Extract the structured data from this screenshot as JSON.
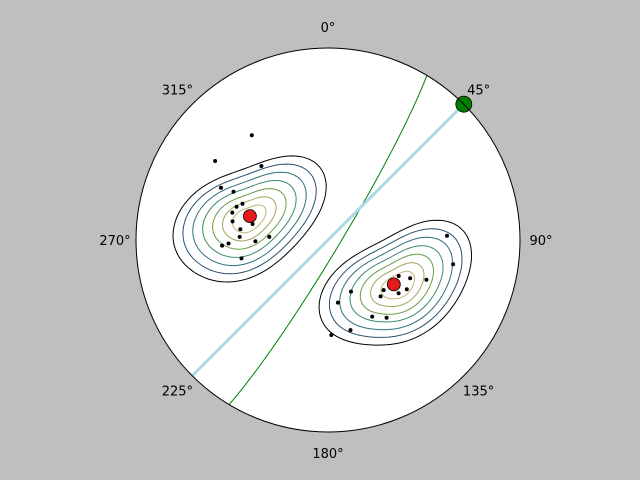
{
  "chart_data": {
    "type": "scatter",
    "projection": "equal-area stereonet",
    "background_color": "#bfbfbf",
    "azimuth_labels": [
      {
        "deg": 0,
        "text": "0°"
      },
      {
        "deg": 45,
        "text": "45°"
      },
      {
        "deg": 90,
        "text": "90°"
      },
      {
        "deg": 135,
        "text": "135°"
      },
      {
        "deg": 180,
        "text": "180°"
      },
      {
        "deg": 225,
        "text": "225°"
      },
      {
        "deg": 270,
        "text": "270°"
      },
      {
        "deg": 315,
        "text": "315°"
      }
    ],
    "grid": false,
    "legend": "none",
    "contour_colors": [
      "#000000",
      "#2b4f6e",
      "#2e6f7a",
      "#3c8a6a",
      "#6a9a4a",
      "#9da55a",
      "#c8b27a"
    ],
    "clusters": [
      {
        "name": "",
        "center_azimuth_deg": 285,
        "center_plunge_deg": 55,
        "mean_pole": {
          "azimuth_deg": 287,
          "plunge_deg": 55
        },
        "color": "#e41a1c",
        "poles": [
          [
            318,
            47
          ],
          [
            324,
            33
          ],
          [
            297,
            44
          ],
          [
            290,
            48
          ],
          [
            277,
            52
          ],
          [
            269,
            59
          ],
          [
            273,
            65
          ],
          [
            281,
            48
          ],
          [
            296,
            38
          ],
          [
            305,
            29
          ],
          [
            267,
            44
          ],
          [
            282,
            57
          ],
          [
            272,
            52
          ],
          [
            268,
            47
          ],
          [
            258,
            52
          ],
          [
            286,
            47
          ],
          [
            293,
            50
          ]
        ]
      },
      {
        "name": "",
        "center_azimuth_deg": 123,
        "center_plunge_deg": 54,
        "mean_pole": {
          "azimuth_deg": 124,
          "plunge_deg": 56
        },
        "color": "#e41a1c",
        "poles": [
          [
            88,
            38
          ],
          [
            101,
            34
          ],
          [
            112,
            44
          ],
          [
            117,
            56
          ],
          [
            125,
            57
          ],
          [
            137,
            57
          ],
          [
            150,
            52
          ],
          [
            166,
            50
          ],
          [
            178,
            49
          ],
          [
            171,
            63
          ],
          [
            156,
            66
          ],
          [
            122,
            50
          ],
          [
            132,
            58
          ],
          [
            143,
            48
          ],
          [
            127,
            52
          ],
          [
            115,
            51
          ]
        ]
      }
    ],
    "great_circle": {
      "strike_deg": 31,
      "dip_deg": 85,
      "color": "#008000"
    },
    "diameter_line": {
      "azimuth_deg": 45,
      "color": "#add8e6"
    },
    "axis_point": {
      "azimuth_deg": 45,
      "plunge_deg": 0,
      "color": "#008000"
    }
  }
}
